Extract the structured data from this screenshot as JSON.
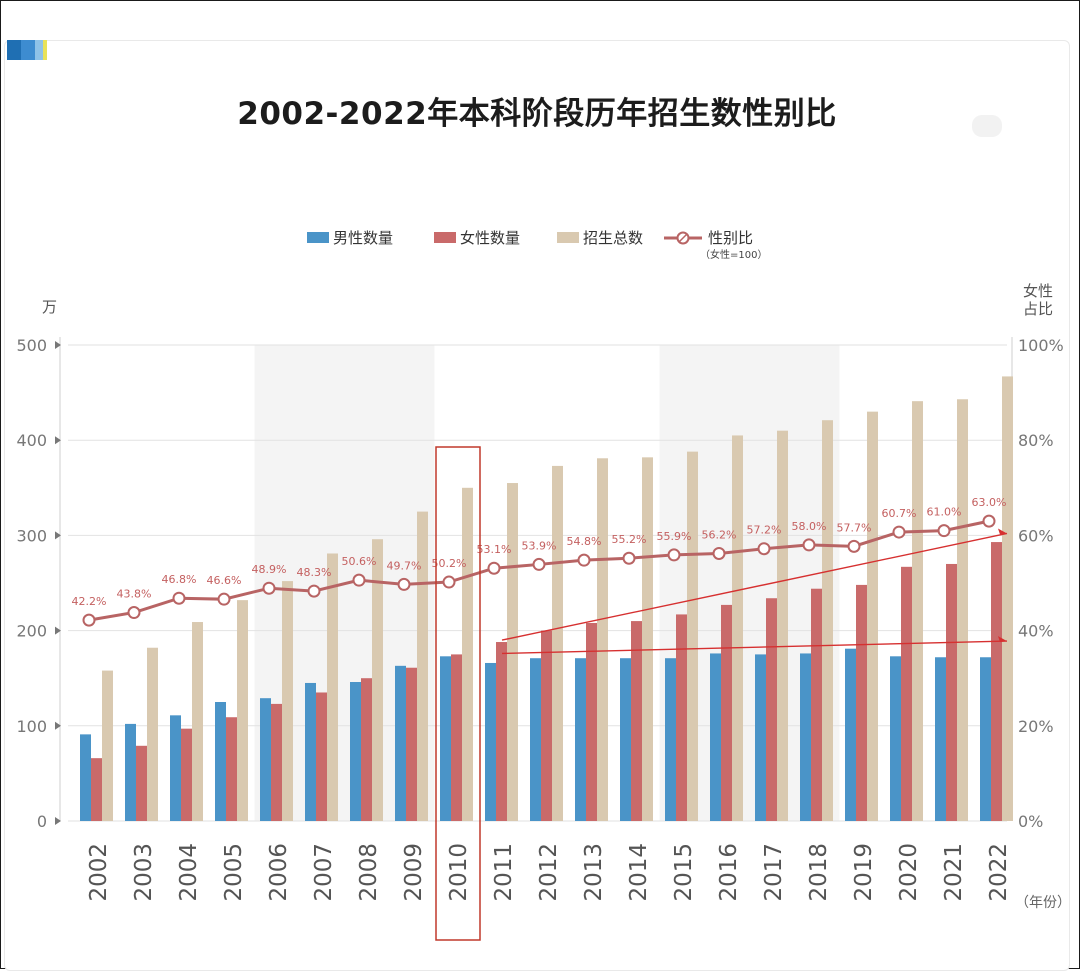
{
  "title": "2002-2022年本科阶段历年招生数性别比",
  "legend": {
    "male": "男性数量",
    "female": "女性数量",
    "total": "招生总数",
    "ratio": "性别比",
    "ratio_note": "（女性=100）"
  },
  "y_left_unit": "万",
  "y_right_unit_line1": "女性",
  "y_right_unit_line2": "占比",
  "x_unit": "（年份）",
  "colors": {
    "male": "#4a94c8",
    "female": "#c96a6a",
    "total": "#d9c9b0",
    "ratio_line": "#b86464",
    "ratio_label": "#c46060",
    "trend": "#d63030",
    "highlight_box": "#c0392b"
  },
  "chart_data": {
    "type": "bar",
    "categories": [
      "2002",
      "2003",
      "2004",
      "2005",
      "2006",
      "2007",
      "2008",
      "2009",
      "2010",
      "2011",
      "2012",
      "2013",
      "2014",
      "2015",
      "2016",
      "2017",
      "2018",
      "2019",
      "2020",
      "2021",
      "2022"
    ],
    "series": [
      {
        "name": "男性数量",
        "values": [
          91,
          102,
          111,
          125,
          129,
          145,
          146,
          163,
          173,
          166,
          171,
          171,
          171,
          171,
          176,
          175,
          176,
          181,
          173,
          172,
          172
        ]
      },
      {
        "name": "女性数量",
        "values": [
          66,
          79,
          97,
          109,
          123,
          135,
          150,
          161,
          175,
          188,
          200,
          208,
          210,
          217,
          227,
          234,
          244,
          248,
          267,
          270,
          293
        ]
      },
      {
        "name": "招生总数",
        "values": [
          158,
          182,
          209,
          232,
          252,
          281,
          296,
          325,
          350,
          355,
          373,
          381,
          382,
          388,
          405,
          410,
          421,
          430,
          441,
          443,
          467
        ]
      },
      {
        "name": "性别比",
        "axis": "right",
        "values": [
          42.2,
          43.8,
          46.8,
          46.6,
          48.9,
          48.3,
          50.6,
          49.7,
          50.2,
          53.1,
          53.9,
          54.8,
          55.2,
          55.9,
          56.2,
          57.2,
          58.0,
          57.7,
          60.7,
          61.0,
          63.0
        ],
        "labels": [
          "42.2%",
          "43.8%",
          "46.8%",
          "46.6%",
          "48.9%",
          "48.3%",
          "50.6%",
          "49.7%",
          "50.2%",
          "53.1%",
          "53.9%",
          "54.8%",
          "55.2%",
          "55.9%",
          "56.2%",
          "57.2%",
          "58.0%",
          "57.7%",
          "60.7%",
          "61.0%",
          "63.0%"
        ]
      }
    ],
    "y_left": {
      "ticks": [
        "0",
        "100",
        "200",
        "300",
        "400",
        "500"
      ],
      "ylim": [
        0,
        500
      ]
    },
    "y_right": {
      "ticks": [
        "0%",
        "20%",
        "40%",
        "60%",
        "80%",
        "100%"
      ],
      "ylim": [
        0,
        100
      ]
    },
    "shaded_ranges": [
      [
        "2006",
        "2009"
      ],
      [
        "2015",
        "2018"
      ]
    ],
    "highlight": "2010",
    "trend_lines": [
      {
        "from": [
          "2011",
          190
        ],
        "to": [
          "2022",
          302
        ]
      },
      {
        "from": [
          "2011",
          176
        ],
        "to": [
          "2022",
          189
        ]
      }
    ]
  }
}
